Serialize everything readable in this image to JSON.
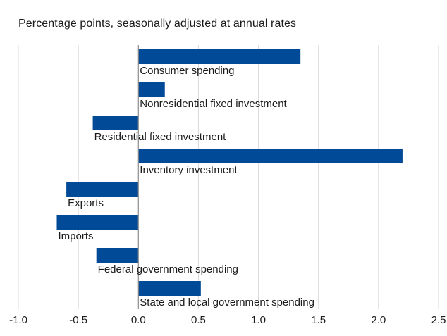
{
  "chart_data": {
    "type": "bar",
    "orientation": "horizontal",
    "subtitle": "Percentage points, seasonally adjusted at annual rates",
    "categories": [
      "Consumer spending",
      "Nonresidential fixed investment",
      "Residential fixed investment",
      "Inventory investment",
      "Exports",
      "Imports",
      "Federal government spending",
      "State and local government spending"
    ],
    "values": [
      1.35,
      0.22,
      -0.38,
      2.2,
      -0.6,
      -0.68,
      -0.35,
      0.52
    ],
    "xlim": [
      -1.0,
      2.5
    ],
    "xticks": [
      "-1.0",
      "-0.5",
      "0.0",
      "0.5",
      "1.0",
      "1.5",
      "2.0",
      "2.5"
    ],
    "xtick_values": [
      -1.0,
      -0.5,
      0.0,
      0.5,
      1.0,
      1.5,
      2.0,
      2.5
    ],
    "grid": "vertical",
    "colors": {
      "bar": "#004a97",
      "grid": "#d9d9d9",
      "zero_line": "#8c8c8c",
      "text": "#1a1a1a"
    }
  }
}
